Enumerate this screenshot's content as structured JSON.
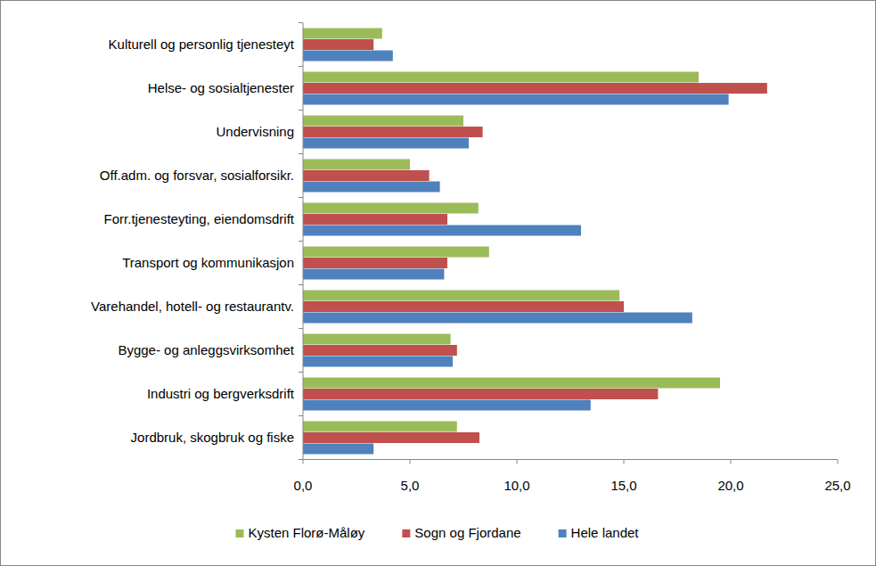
{
  "chart_data": {
    "type": "bar",
    "orientation": "horizontal",
    "legend": "bottom",
    "grid": false,
    "categories": [
      "Kulturell og personlig tjenesteyt",
      "Helse- og sosialtjenester",
      "Undervisning",
      "Off.adm. og forsvar, sosialforsikr.",
      "Forr.tjenesteyting, eiendomsdrift",
      "Transport og kommunikasjon",
      "Varehandel, hotell- og restaurantv.",
      "Bygge- og anleggsvirksomhet",
      "Industri og bergverksdrift",
      "Jordbruk, skogbruk og fiske"
    ],
    "series": [
      {
        "name": "Kysten Florø-Måløy",
        "color": "#9bbb59",
        "values": [
          3.7,
          18.5,
          7.5,
          5.0,
          8.2,
          8.7,
          14.8,
          6.9,
          19.5,
          7.2
        ]
      },
      {
        "name": "Sogn og Fjordane",
        "color": "#c0504d",
        "values": [
          3.3,
          21.7,
          8.4,
          5.9,
          6.75,
          6.75,
          15.0,
          7.2,
          16.6,
          8.25
        ]
      },
      {
        "name": "Hele landet",
        "color": "#4f81bd",
        "values": [
          4.2,
          19.9,
          7.75,
          6.4,
          13.0,
          6.6,
          18.2,
          7.0,
          13.45,
          3.3
        ]
      }
    ],
    "xlim": [
      0,
      25
    ],
    "xticks": [
      {
        "value": 0,
        "label": "0,0"
      },
      {
        "value": 5,
        "label": "5,0"
      },
      {
        "value": 10,
        "label": "10,0"
      },
      {
        "value": 15,
        "label": "15,0"
      },
      {
        "value": 20,
        "label": "20,0"
      },
      {
        "value": 25,
        "label": "25,0"
      }
    ]
  }
}
